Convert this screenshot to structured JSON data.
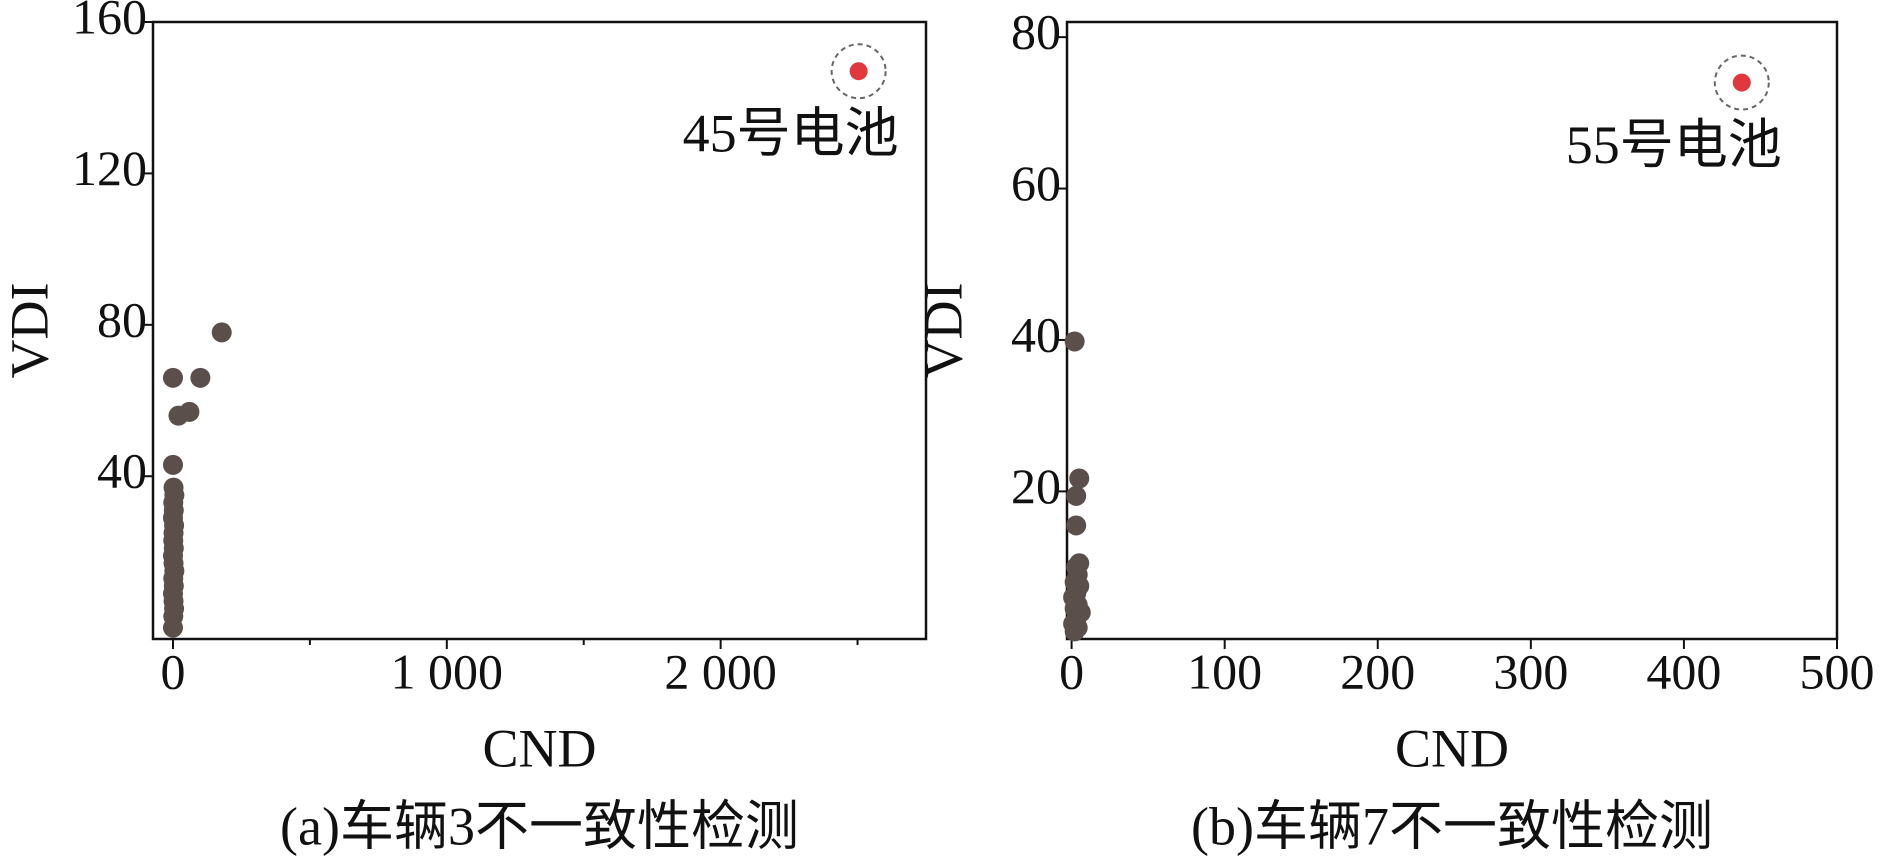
{
  "chart_data": [
    {
      "type": "scatter",
      "title": "(a)车辆3不一致性检测",
      "xlabel": "CND",
      "ylabel": "VDI",
      "xlim": [
        -73,
        2750
      ],
      "ylim": [
        -3,
        160
      ],
      "xticks": [
        0,
        {
          "value": 1000,
          "label": "1 000"
        },
        {
          "value": 2000,
          "label": "2 000"
        }
      ],
      "xminor_ticks": [
        500,
        1500,
        2500
      ],
      "yticks": [
        40,
        80,
        120,
        160
      ],
      "series": [
        {
          "color": "#5a4f4a",
          "x": [
            0,
            2,
            5,
            1,
            3,
            0,
            4,
            2,
            1,
            3,
            0,
            2,
            5,
            1,
            3,
            0,
            2,
            4,
            1,
            0,
            0,
            100,
            20,
            60,
            178
          ],
          "values": [
            43,
            37,
            35,
            33,
            31,
            29,
            27,
            25,
            23,
            21,
            19,
            17,
            15,
            13,
            11,
            9,
            7,
            5,
            3,
            0,
            66,
            66,
            56,
            57,
            78
          ]
        },
        {
          "color": "#e0383e",
          "label": "45号电池",
          "circled": true,
          "x": [
            2504
          ],
          "values": [
            147
          ]
        }
      ]
    },
    {
      "type": "scatter",
      "title": "(b)车辆7不一致性检测",
      "xlabel": "CND",
      "ylabel": "VDI",
      "xlim": [
        -3,
        500
      ],
      "ylim": [
        0.5,
        82
      ],
      "xticks": [
        0,
        100,
        200,
        300,
        400,
        500
      ],
      "yticks": [
        20,
        40,
        60,
        80
      ],
      "series": [
        {
          "color": "#5a4f4a",
          "x": [
            2,
            5,
            3,
            3,
            5,
            3,
            4,
            2,
            5,
            3,
            1,
            4,
            2,
            6,
            3,
            1,
            4,
            2
          ],
          "values": [
            39.8,
            21.7,
            19.4,
            15.5,
            10.5,
            10,
            9,
            8,
            7.5,
            6.5,
            6,
            5,
            4.5,
            4,
            3,
            2.5,
            2,
            1.5
          ]
        },
        {
          "color": "#e0383e",
          "label": "55号电池",
          "circled": true,
          "x": [
            437.8
          ],
          "values": [
            74
          ]
        }
      ]
    }
  ]
}
